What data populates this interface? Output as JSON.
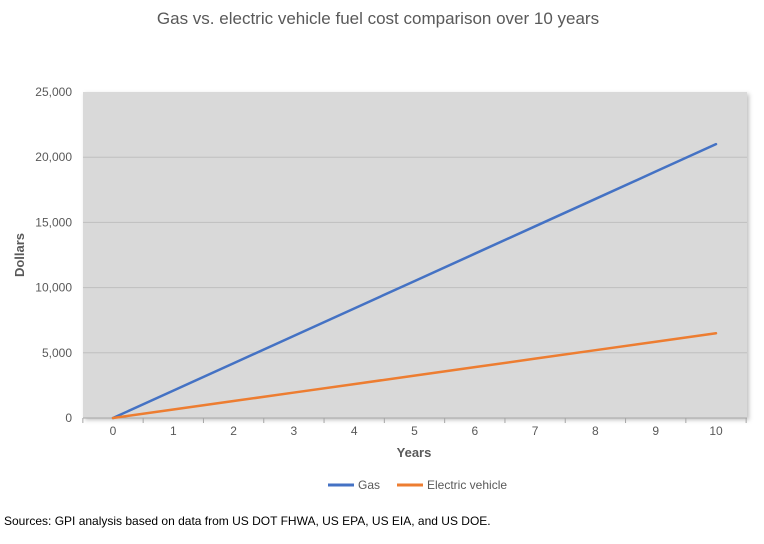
{
  "colors": {
    "plot_bg": "#d9d9d9",
    "grid": "#bfbfbf",
    "gas": "#4472c4",
    "ev": "#ed7d31",
    "text": "#595959"
  },
  "chart_data": {
    "type": "line",
    "title": "Gas vs. electric vehicle fuel cost comparison over 10 years",
    "xlabel": "Years",
    "ylabel": "Dollars",
    "x": [
      0,
      1,
      2,
      3,
      4,
      5,
      6,
      7,
      8,
      9,
      10
    ],
    "xlim": [
      0,
      10
    ],
    "ylim": [
      0,
      25000
    ],
    "yticks": [
      0,
      5000,
      10000,
      15000,
      20000,
      25000
    ],
    "ytick_labels": [
      "0",
      "5,000",
      "10,000",
      "15,000",
      "20,000",
      "25,000"
    ],
    "grid": true,
    "legend_position": "bottom",
    "series": [
      {
        "name": "Gas",
        "values": [
          0,
          2100,
          4200,
          6300,
          8400,
          10500,
          12600,
          14700,
          16800,
          18900,
          21000
        ]
      },
      {
        "name": "Electric vehicle",
        "values": [
          0,
          650,
          1300,
          1950,
          2600,
          3250,
          3900,
          4550,
          5200,
          5850,
          6500
        ]
      }
    ]
  },
  "source_note": "Sources: GPI analysis based on data from US DOT FHWA, US EPA, US EIA, and US DOE."
}
